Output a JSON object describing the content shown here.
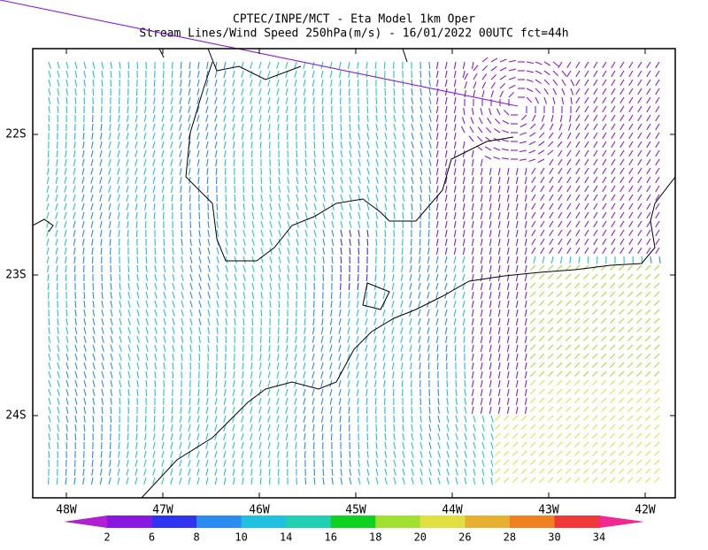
{
  "header": {
    "title": "CPTEC/INPE/MCT -  Eta Model 1km Oper",
    "subtitle": "Stream Lines/Wind Speed 250hPa(m/s) - 16/01/2022 00UTC fct=44h"
  },
  "map": {
    "lat_labels": [
      "22S",
      "23S",
      "24S"
    ],
    "lon_labels": [
      "48W",
      "47W",
      "46W",
      "45W",
      "44W",
      "43W",
      "42W"
    ]
  },
  "colorbar": {
    "labels": [
      "2",
      "6",
      "8",
      "10",
      "14",
      "16",
      "18",
      "20",
      "26",
      "28",
      "30",
      "34"
    ],
    "colors": [
      "#b020d0",
      "#8818e0",
      "#3034f0",
      "#2a8cf0",
      "#20c0e0",
      "#20d0b0",
      "#10d020",
      "#a0e030",
      "#e0e040",
      "#e8b030",
      "#f08020",
      "#f03838",
      "#f02890"
    ]
  }
}
